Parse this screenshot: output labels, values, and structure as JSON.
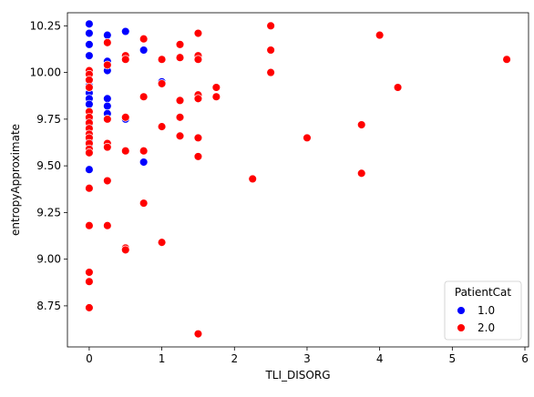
{
  "chart_data": {
    "type": "scatter",
    "title": "",
    "xlabel": "TLI_DISORG",
    "ylabel": "entropyApproximate",
    "xlim": [
      -0.3,
      6.05
    ],
    "ylim": [
      8.53,
      10.32
    ],
    "xticks": [
      0,
      1,
      2,
      3,
      4,
      5,
      6
    ],
    "xtick_labels": [
      "0",
      "1",
      "2",
      "3",
      "4",
      "5",
      "6"
    ],
    "yticks": [
      8.75,
      9.0,
      9.25,
      9.5,
      9.75,
      10.0,
      10.25
    ],
    "ytick_labels": [
      "8.75",
      "9.00",
      "9.25",
      "9.50",
      "9.75",
      "10.00",
      "10.25"
    ],
    "grid": false,
    "legend": {
      "title": "PatientCat",
      "placement": "lower-right",
      "entries": [
        {
          "label": "1.0",
          "color": "#0000ff"
        },
        {
          "label": "2.0",
          "color": "#ff0000"
        }
      ]
    },
    "series": [
      {
        "name": "1.0",
        "color": "#0000ff",
        "points": [
          [
            0,
            10.26
          ],
          [
            0,
            10.21
          ],
          [
            0,
            10.15
          ],
          [
            0,
            10.09
          ],
          [
            0,
            9.99
          ],
          [
            0,
            9.93
          ],
          [
            0,
            9.89
          ],
          [
            0,
            9.86
          ],
          [
            0,
            9.83
          ],
          [
            0,
            9.79
          ],
          [
            0,
            9.75
          ],
          [
            0,
            9.72
          ],
          [
            0,
            9.63
          ],
          [
            0,
            9.6
          ],
          [
            0,
            9.48
          ],
          [
            0.25,
            10.2
          ],
          [
            0.25,
            10.06
          ],
          [
            0.25,
            10.01
          ],
          [
            0.25,
            9.86
          ],
          [
            0.25,
            9.82
          ],
          [
            0.25,
            9.78
          ],
          [
            0.25,
            9.75
          ],
          [
            0.5,
            10.22
          ],
          [
            0.5,
            9.75
          ],
          [
            0.75,
            10.12
          ],
          [
            0.75,
            9.52
          ],
          [
            1.0,
            9.95
          ]
        ]
      },
      {
        "name": "2.0",
        "color": "#ff0000",
        "points": [
          [
            0,
            10.01
          ],
          [
            0,
            9.99
          ],
          [
            0,
            9.96
          ],
          [
            0,
            9.92
          ],
          [
            0,
            9.79
          ],
          [
            0,
            9.76
          ],
          [
            0,
            9.73
          ],
          [
            0,
            9.7
          ],
          [
            0,
            9.67
          ],
          [
            0,
            9.65
          ],
          [
            0,
            9.62
          ],
          [
            0,
            9.59
          ],
          [
            0,
            9.57
          ],
          [
            0,
            9.38
          ],
          [
            0,
            9.18
          ],
          [
            0,
            8.93
          ],
          [
            0,
            8.88
          ],
          [
            0,
            8.74
          ],
          [
            0.25,
            10.16
          ],
          [
            0.25,
            10.04
          ],
          [
            0.25,
            9.75
          ],
          [
            0.25,
            9.62
          ],
          [
            0.25,
            9.6
          ],
          [
            0.25,
            9.42
          ],
          [
            0.25,
            9.18
          ],
          [
            0.5,
            10.09
          ],
          [
            0.5,
            10.07
          ],
          [
            0.5,
            9.76
          ],
          [
            0.5,
            9.58
          ],
          [
            0.5,
            9.06
          ],
          [
            0.5,
            9.05
          ],
          [
            0.75,
            10.18
          ],
          [
            0.75,
            9.87
          ],
          [
            0.75,
            9.58
          ],
          [
            0.75,
            9.3
          ],
          [
            1.0,
            10.07
          ],
          [
            1.0,
            9.94
          ],
          [
            1.0,
            9.71
          ],
          [
            1.0,
            9.09
          ],
          [
            1.25,
            10.15
          ],
          [
            1.25,
            10.08
          ],
          [
            1.25,
            9.85
          ],
          [
            1.25,
            9.76
          ],
          [
            1.25,
            9.66
          ],
          [
            1.5,
            10.21
          ],
          [
            1.5,
            10.09
          ],
          [
            1.5,
            10.07
          ],
          [
            1.5,
            9.88
          ],
          [
            1.5,
            9.86
          ],
          [
            1.5,
            9.65
          ],
          [
            1.5,
            9.55
          ],
          [
            1.5,
            8.6
          ],
          [
            1.75,
            9.92
          ],
          [
            1.75,
            9.87
          ],
          [
            2.25,
            9.43
          ],
          [
            2.5,
            10.25
          ],
          [
            2.5,
            10.12
          ],
          [
            2.5,
            10.0
          ],
          [
            3.0,
            9.65
          ],
          [
            3.75,
            9.72
          ],
          [
            3.75,
            9.46
          ],
          [
            4.0,
            10.2
          ],
          [
            4.25,
            9.92
          ],
          [
            5.75,
            10.07
          ]
        ]
      }
    ]
  }
}
